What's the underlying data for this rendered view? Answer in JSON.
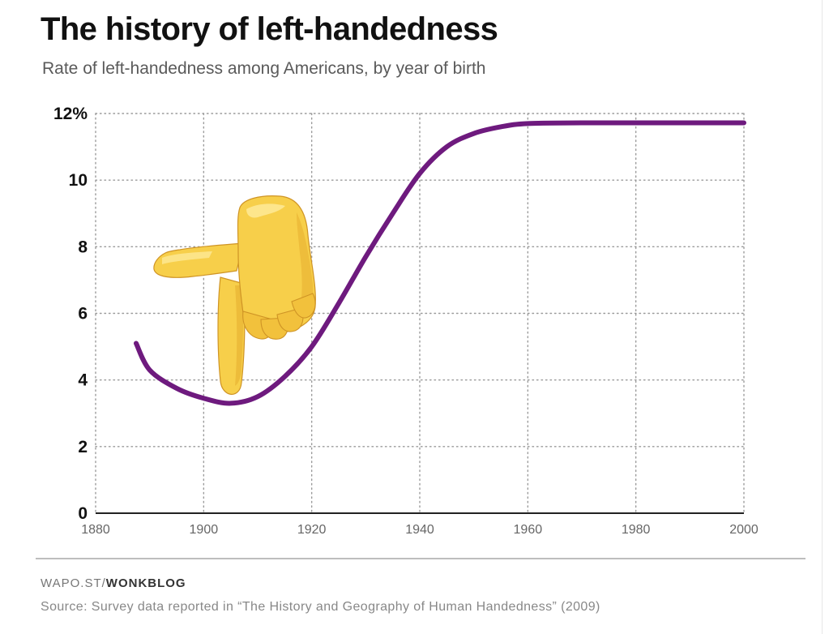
{
  "header": {
    "title": "The history of left-handedness",
    "subtitle": "Rate of left-handedness among Americans, by year of birth"
  },
  "footer": {
    "credit_prefix": "WAPO.ST/",
    "credit_strong": "WONKBLOG",
    "source": "Source: Survey data reported in “The History and Geography of Human Handedness” (2009)"
  },
  "colors": {
    "line": "#6e1a7e",
    "grid": "#9a9a9a",
    "axis": "#222222",
    "hand_fill": "#f7cf4a",
    "hand_shadow": "#e3a72a",
    "hand_outline": "#c98a1e"
  },
  "decoration": {
    "icon": "pointing-down-hand-emoji-icon"
  },
  "chart_data": {
    "type": "line",
    "title": "The history of left-handedness",
    "subtitle": "Rate of left-handedness among Americans, by year of birth",
    "xlabel": "",
    "ylabel": "",
    "xlim": [
      1880,
      2000
    ],
    "ylim": [
      0,
      12
    ],
    "grid": true,
    "legend": "none",
    "x_ticks": [
      1880,
      1900,
      1920,
      1940,
      1960,
      1980,
      2000
    ],
    "y_ticks": [
      0,
      2,
      4,
      6,
      8,
      10,
      12
    ],
    "y_tick_labels": [
      "0",
      "2",
      "4",
      "6",
      "8",
      "10",
      "12%"
    ],
    "series": [
      {
        "color": "#6e1a7e",
        "x": [
          1887.5,
          1890,
          1895,
          1900,
          1905,
          1910,
          1915,
          1920,
          1925,
          1930,
          1935,
          1940,
          1945,
          1950,
          1955,
          1960,
          1970,
          1980,
          1990,
          2000
        ],
        "values": [
          5.1,
          4.3,
          3.75,
          3.45,
          3.3,
          3.5,
          4.1,
          5.0,
          6.3,
          7.7,
          9.0,
          10.2,
          11.0,
          11.4,
          11.6,
          11.7,
          11.72,
          11.72,
          11.72,
          11.72
        ]
      }
    ]
  }
}
